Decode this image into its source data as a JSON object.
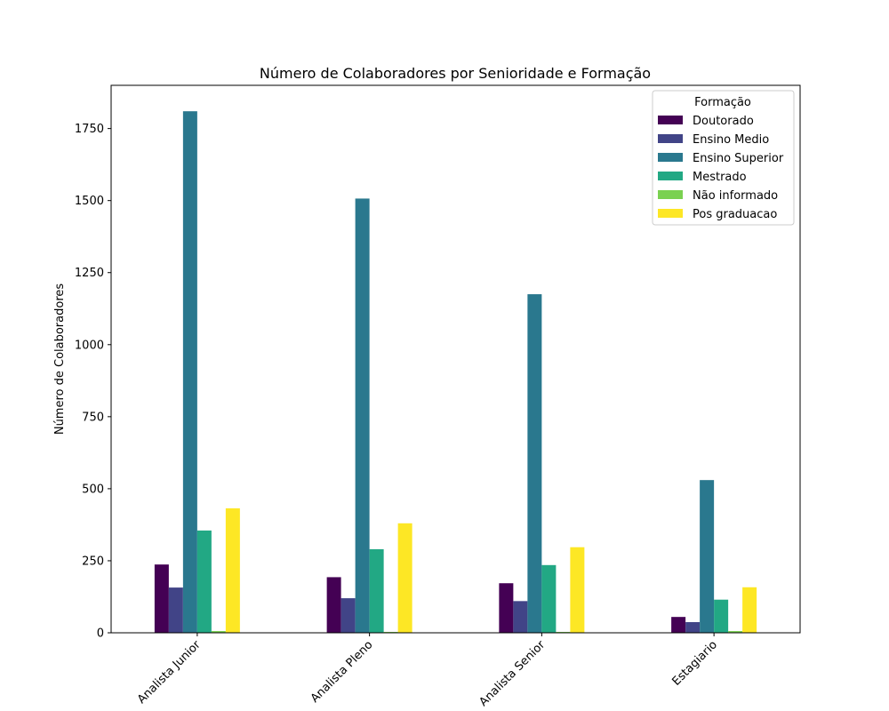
{
  "chart_data": {
    "type": "bar",
    "title": "Número de Colaboradores por Senioridade e Formação",
    "xlabel": "",
    "ylabel": "Número de Colaboradores",
    "ylim": [
      0,
      1900
    ],
    "yticks": [
      0,
      250,
      500,
      750,
      1000,
      1250,
      1500,
      1750
    ],
    "categories": [
      "Analista Junior",
      "Analista Pleno",
      "Analista Senior",
      "Estagiario"
    ],
    "legend": {
      "title": "Formação",
      "placement": "top-right"
    },
    "series": [
      {
        "name": "Doutorado",
        "color": "#440154",
        "values": [
          237,
          193,
          172,
          55
        ]
      },
      {
        "name": "Ensino Medio",
        "color": "#414487",
        "values": [
          157,
          120,
          110,
          37
        ]
      },
      {
        "name": "Ensino Superior",
        "color": "#2a788e",
        "values": [
          1810,
          1507,
          1175,
          530
        ]
      },
      {
        "name": "Mestrado",
        "color": "#22a884",
        "values": [
          355,
          290,
          235,
          115
        ]
      },
      {
        "name": "Não informado",
        "color": "#7ad151",
        "values": [
          6,
          3,
          3,
          6
        ]
      },
      {
        "name": "Pos graduacao",
        "color": "#fde725",
        "values": [
          432,
          380,
          297,
          158
        ]
      }
    ]
  }
}
